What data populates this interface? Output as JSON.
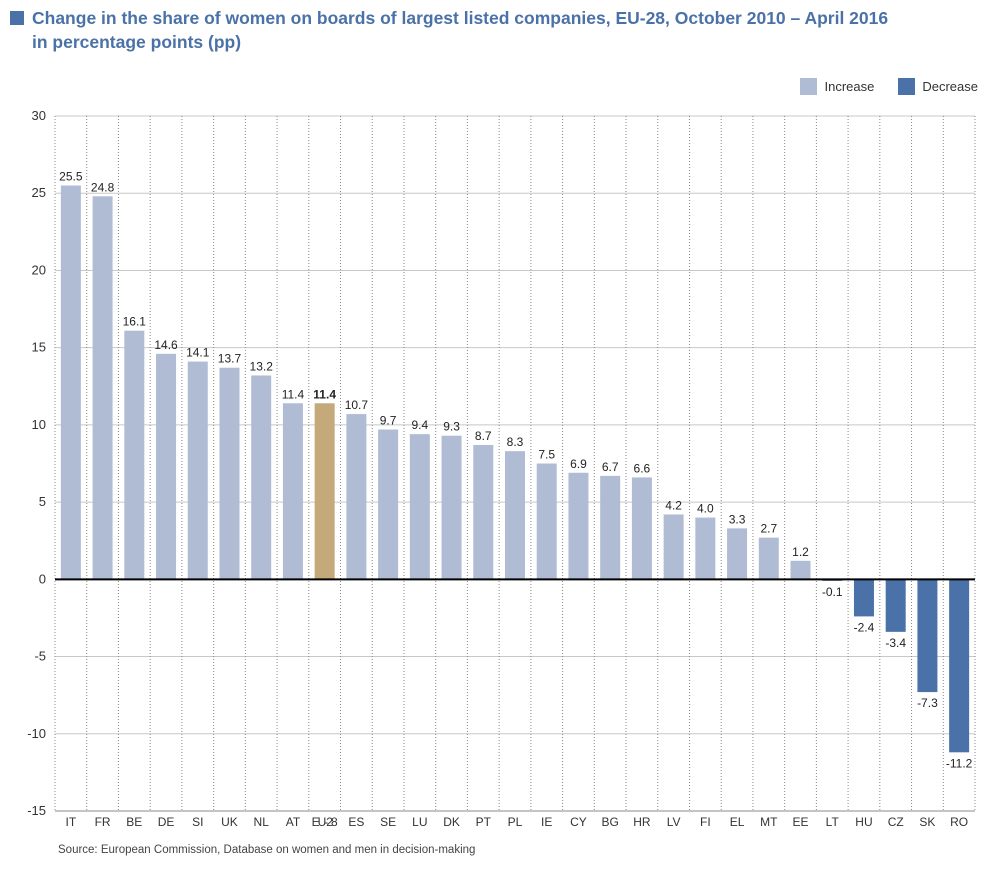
{
  "title": "Change in the share of women on boards of largest listed companies, EU-28, October 2010 – April 2016",
  "subtitle": "in percentage points (pp)",
  "legend": {
    "increase": "Increase",
    "decrease": "Decrease"
  },
  "colors": {
    "increase": "#b0bcd4",
    "decrease": "#4a72a8",
    "highlight": "#c4a97a",
    "title": "#4a72a8"
  },
  "source": "Source: European Commission, Database on women and men in decision-making",
  "chart_data": {
    "type": "bar",
    "title": "Change in the share of women on boards of largest listed companies, EU-28, October 2010 – April 2016",
    "subtitle": "in percentage points (pp)",
    "xlabel": "",
    "ylabel": "",
    "ylim": [
      -15,
      30
    ],
    "yticks": [
      30,
      25,
      20,
      15,
      10,
      5,
      0,
      -5,
      -10,
      -15
    ],
    "grid": true,
    "legend_position": "top-right",
    "highlight_category": "EU-28",
    "categories": [
      "IT",
      "FR",
      "BE",
      "DE",
      "SI",
      "UK",
      "NL",
      "AT",
      "EU-28",
      "ES",
      "SE",
      "LU",
      "DK",
      "PT",
      "PL",
      "IE",
      "CY",
      "BG",
      "HR",
      "LV",
      "FI",
      "EL",
      "MT",
      "EE",
      "LT",
      "HU",
      "CZ",
      "SK",
      "RO"
    ],
    "values": [
      25.5,
      24.8,
      16.1,
      14.6,
      14.1,
      13.7,
      13.2,
      11.4,
      11.4,
      10.7,
      9.7,
      9.4,
      9.3,
      8.7,
      8.3,
      7.5,
      6.9,
      6.7,
      6.6,
      4.2,
      4.0,
      3.3,
      2.7,
      1.2,
      -0.1,
      -2.4,
      -3.4,
      -7.3,
      -11.2
    ],
    "labels": [
      "25.5",
      "24.8",
      "16.1",
      "14.6",
      "14.1",
      "13.7",
      "13.2",
      "11.4",
      "11.4",
      "10.7",
      "9.7",
      "9.4",
      "9.3",
      "8.7",
      "8.3",
      "7.5",
      "6.9",
      "6.7",
      "6.6",
      "4.2",
      "4.0",
      "3.3",
      "2.7",
      "1.2",
      "-0.1",
      "-2.4",
      "-3.4",
      "-7.3",
      "-11.2"
    ]
  }
}
